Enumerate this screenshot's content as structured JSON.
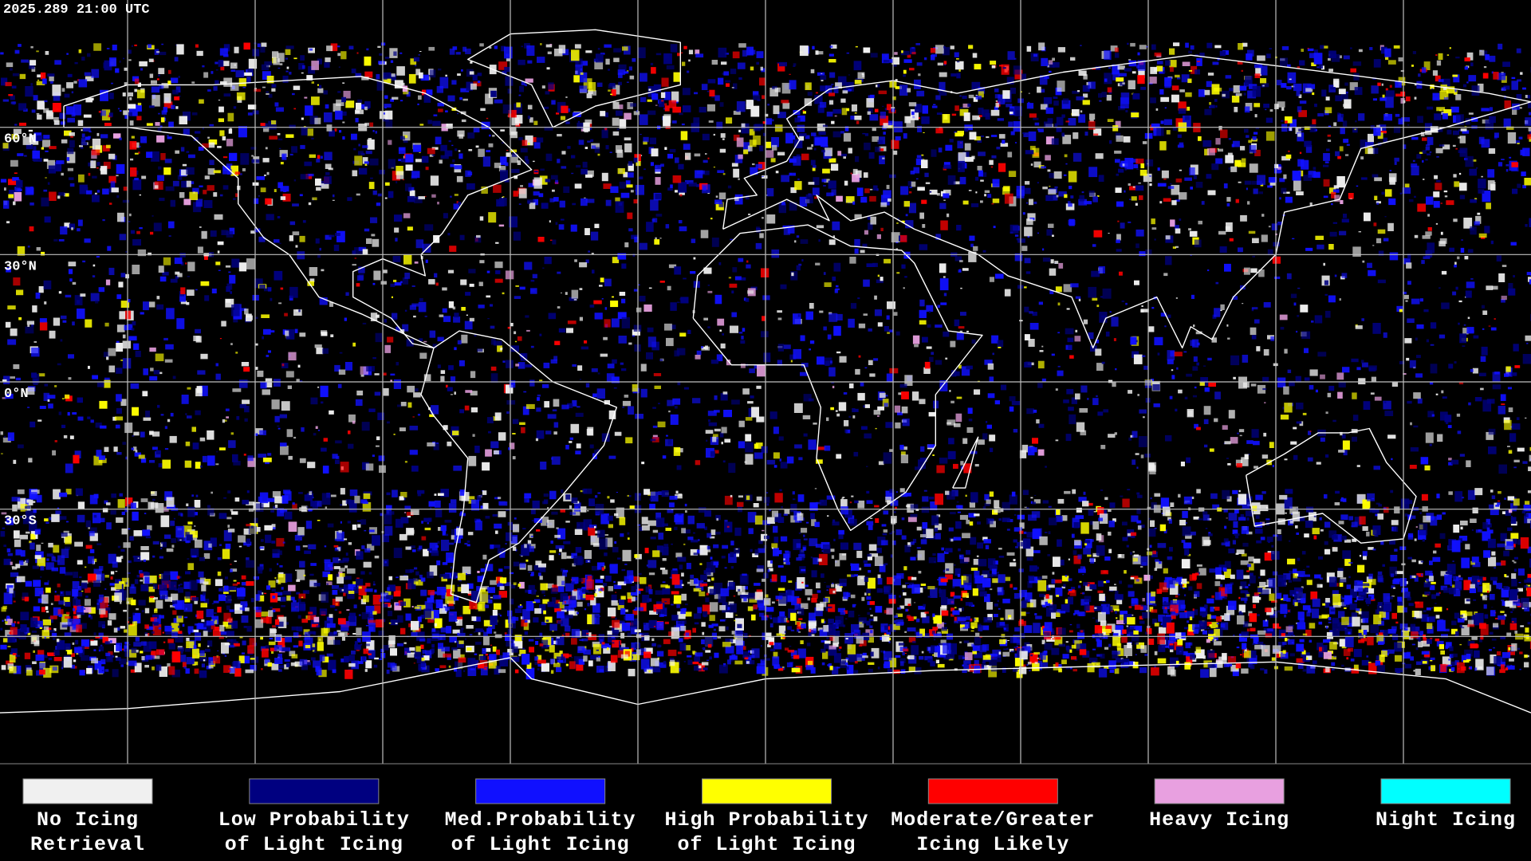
{
  "timestamp": "2025.289 21:00 UTC",
  "latitude_labels": [
    {
      "lat": 60,
      "label": "60°N"
    },
    {
      "lat": 30,
      "label": "30°N"
    },
    {
      "lat": 0,
      "label": "0°N"
    },
    {
      "lat": -30,
      "label": "30°S"
    }
  ],
  "legend": [
    {
      "color": "#f0f0f0",
      "lines": [
        "No Icing",
        "Retrieval"
      ]
    },
    {
      "color": "#000080",
      "lines": [
        "Low Probability",
        "of Light Icing"
      ]
    },
    {
      "color": "#1010ff",
      "lines": [
        "Med.Probability",
        "of Light Icing"
      ]
    },
    {
      "color": "#ffff00",
      "lines": [
        "High Probability",
        "of Light Icing"
      ]
    },
    {
      "color": "#ff0000",
      "lines": [
        "Moderate/Greater",
        "Icing Likely"
      ]
    },
    {
      "color": "#e8a0e0",
      "lines": [
        "Heavy Icing"
      ]
    },
    {
      "color": "#00ffff",
      "lines": [
        "Night Icing"
      ]
    }
  ]
}
